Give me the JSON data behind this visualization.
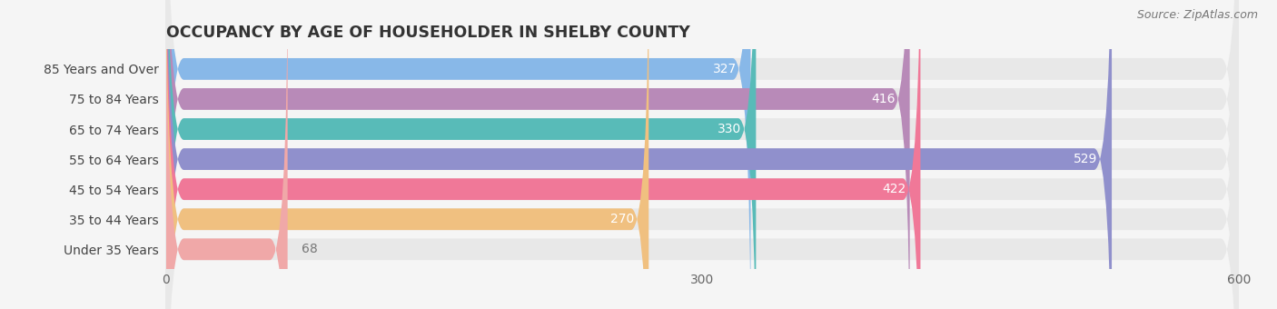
{
  "title": "OCCUPANCY BY AGE OF HOUSEHOLDER IN SHELBY COUNTY",
  "source": "Source: ZipAtlas.com",
  "categories": [
    "Under 35 Years",
    "35 to 44 Years",
    "45 to 54 Years",
    "55 to 64 Years",
    "65 to 74 Years",
    "75 to 84 Years",
    "85 Years and Over"
  ],
  "values": [
    327,
    416,
    330,
    529,
    422,
    270,
    68
  ],
  "bar_colors": [
    "#88b8e8",
    "#b88ab8",
    "#58bbb8",
    "#9090cc",
    "#f07898",
    "#f0c080",
    "#f0a8a8"
  ],
  "track_color": "#e8e8e8",
  "xlim": [
    0,
    600
  ],
  "xticks": [
    0,
    300,
    600
  ],
  "bar_height": 0.72,
  "background_color": "#f5f5f5",
  "label_color_inside": "#ffffff",
  "label_color_outside": "#777777",
  "title_color": "#333333",
  "title_fontsize": 12.5,
  "source_fontsize": 9,
  "tick_fontsize": 10,
  "category_fontsize": 10,
  "inside_threshold": 100
}
